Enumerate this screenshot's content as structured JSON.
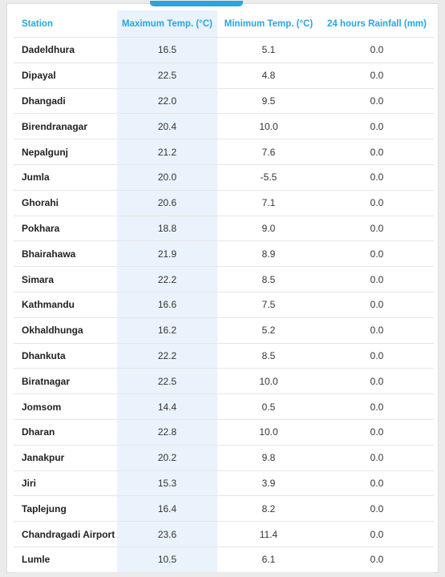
{
  "colors": {
    "accent": "#2aa4e0",
    "highlight_column": "#eaf3fb"
  },
  "table": {
    "headers": {
      "station": "Station",
      "max_temp": "Maximum Temp. (°C)",
      "min_temp": "Minimum Temp. (°C)",
      "rainfall": "24 hours Rainfall (mm)"
    },
    "rows": [
      {
        "station": "Dadeldhura",
        "max": "16.5",
        "min": "5.1",
        "rain": "0.0"
      },
      {
        "station": "Dipayal",
        "max": "22.5",
        "min": "4.8",
        "rain": "0.0"
      },
      {
        "station": "Dhangadi",
        "max": "22.0",
        "min": "9.5",
        "rain": "0.0"
      },
      {
        "station": "Birendranagar",
        "max": "20.4",
        "min": "10.0",
        "rain": "0.0"
      },
      {
        "station": "Nepalgunj",
        "max": "21.2",
        "min": "7.6",
        "rain": "0.0"
      },
      {
        "station": "Jumla",
        "max": "20.0",
        "min": "-5.5",
        "rain": "0.0"
      },
      {
        "station": "Ghorahi",
        "max": "20.6",
        "min": "7.1",
        "rain": "0.0"
      },
      {
        "station": "Pokhara",
        "max": "18.8",
        "min": "9.0",
        "rain": "0.0"
      },
      {
        "station": "Bhairahawa",
        "max": "21.9",
        "min": "8.9",
        "rain": "0.0"
      },
      {
        "station": "Simara",
        "max": "22.2",
        "min": "8.5",
        "rain": "0.0"
      },
      {
        "station": "Kathmandu",
        "max": "16.6",
        "min": "7.5",
        "rain": "0.0"
      },
      {
        "station": "Okhaldhunga",
        "max": "16.2",
        "min": "5.2",
        "rain": "0.0"
      },
      {
        "station": "Dhankuta",
        "max": "22.2",
        "min": "8.5",
        "rain": "0.0"
      },
      {
        "station": "Biratnagar",
        "max": "22.5",
        "min": "10.0",
        "rain": "0.0"
      },
      {
        "station": "Jomsom",
        "max": "14.4",
        "min": "0.5",
        "rain": "0.0"
      },
      {
        "station": "Dharan",
        "max": "22.8",
        "min": "10.0",
        "rain": "0.0"
      },
      {
        "station": "Janakpur",
        "max": "20.2",
        "min": "9.8",
        "rain": "0.0"
      },
      {
        "station": "Jiri",
        "max": "15.3",
        "min": "3.9",
        "rain": "0.0"
      },
      {
        "station": "Taplejung",
        "max": "16.4",
        "min": "8.2",
        "rain": "0.0"
      },
      {
        "station": "Chandragadi Airport",
        "max": "23.6",
        "min": "11.4",
        "rain": "0.0"
      },
      {
        "station": "Lumle",
        "max": "10.5",
        "min": "6.1",
        "rain": "0.0"
      }
    ]
  }
}
